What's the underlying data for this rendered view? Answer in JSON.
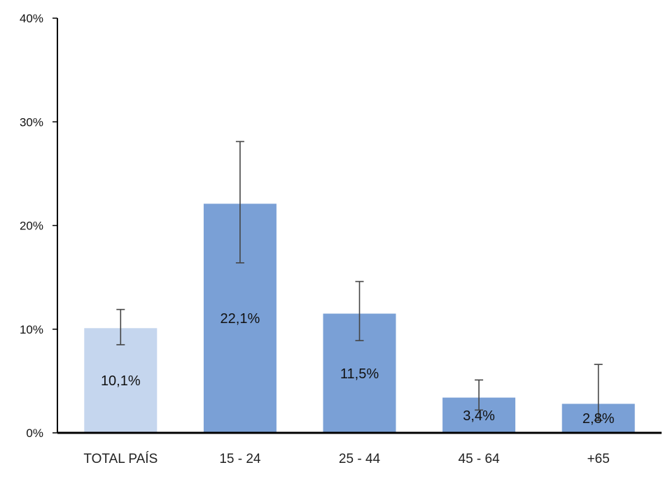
{
  "chart_data": {
    "type": "bar",
    "title": "",
    "xlabel": "",
    "ylabel": "",
    "categories": [
      "TOTAL PAÍS",
      "15 - 24",
      "25 - 44",
      "45 - 64",
      "+65"
    ],
    "values": [
      10.1,
      22.1,
      11.5,
      3.4,
      2.8
    ],
    "value_labels": [
      "10,1%",
      "22,1%",
      "11,5%",
      "3,4%",
      "2,8%"
    ],
    "error_low": [
      8.5,
      16.4,
      8.9,
      2.2,
      1.2
    ],
    "error_high": [
      11.9,
      28.1,
      14.6,
      5.1,
      6.6
    ],
    "ylim": [
      0,
      40
    ],
    "yticks": [
      0,
      10,
      20,
      30,
      40
    ],
    "ytick_labels": [
      "0%",
      "10%",
      "20%",
      "30%",
      "40%"
    ],
    "grid": false,
    "legend": "none",
    "colors": {
      "highlight_bar": "#c5d6ee",
      "bar": "#7aa0d6",
      "error_bar": "#444444",
      "axis": "#000000"
    }
  }
}
